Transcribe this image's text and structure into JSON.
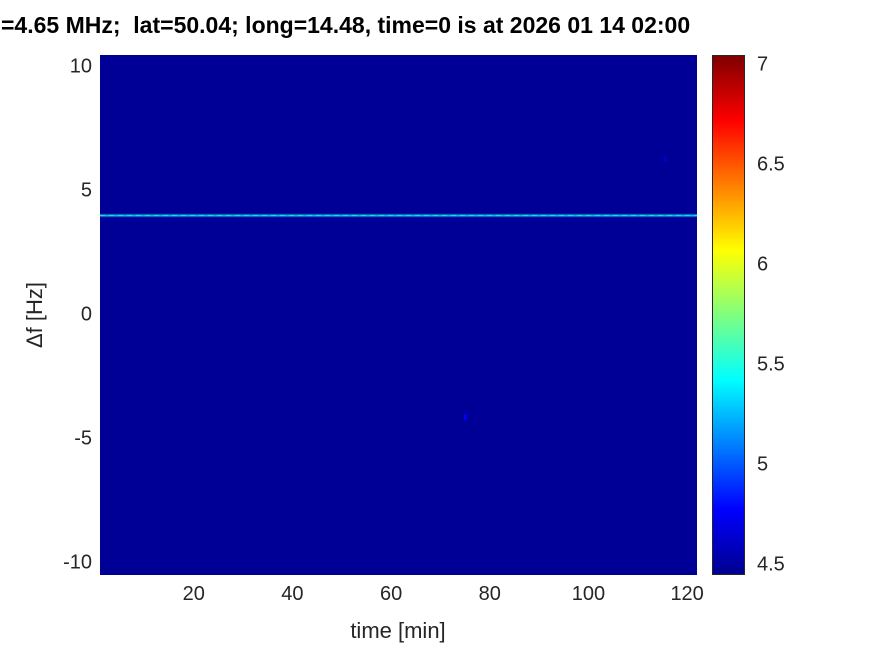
{
  "chart_data": {
    "type": "heatmap",
    "title": "=4.65 MHz;  lat=50.04; long=14.48, time=0 is at 2026 01 14 02:00",
    "xlabel": "time [min]",
    "ylabel": "Δf [Hz]",
    "xlim": [
      1,
      122
    ],
    "ylim": [
      -10.5,
      10.5
    ],
    "xticks": [
      20,
      40,
      60,
      80,
      100,
      120
    ],
    "yticks": [
      -10,
      -5,
      0,
      5,
      10
    ],
    "grid": false,
    "legend": false,
    "colorbar": {
      "position": "right",
      "clim": [
        4.45,
        7.05
      ],
      "ticks": [
        4.5,
        5,
        5.5,
        6,
        6.5,
        7
      ]
    },
    "colormap": {
      "name": "jet",
      "stops": [
        {
          "pos": 0,
          "color": "#00008F"
        },
        {
          "pos": 0.125,
          "color": "#0000FF"
        },
        {
          "pos": 0.375,
          "color": "#00FFFF"
        },
        {
          "pos": 0.625,
          "color": "#FFFF00"
        },
        {
          "pos": 0.875,
          "color": "#FF0000"
        },
        {
          "pos": 1,
          "color": "#7F0000"
        }
      ]
    },
    "background_value": 4.47,
    "features": [
      {
        "kind": "horizontal-line",
        "df_hz": 4.05,
        "time_start_min": 1,
        "time_end_min": 122,
        "value": 5.3,
        "speckle_value": 5.55,
        "style": "speckled"
      },
      {
        "kind": "speck",
        "time_min": 75,
        "df_hz": -4.1,
        "value": 4.75
      },
      {
        "kind": "speck",
        "time_min": 115.5,
        "df_hz": 6.3,
        "value": 4.6
      }
    ]
  },
  "colors": {
    "title_text": "#000000",
    "axis_text": "#262626",
    "plot_background": "#00008F",
    "figure_background": "#FFFFFF"
  }
}
